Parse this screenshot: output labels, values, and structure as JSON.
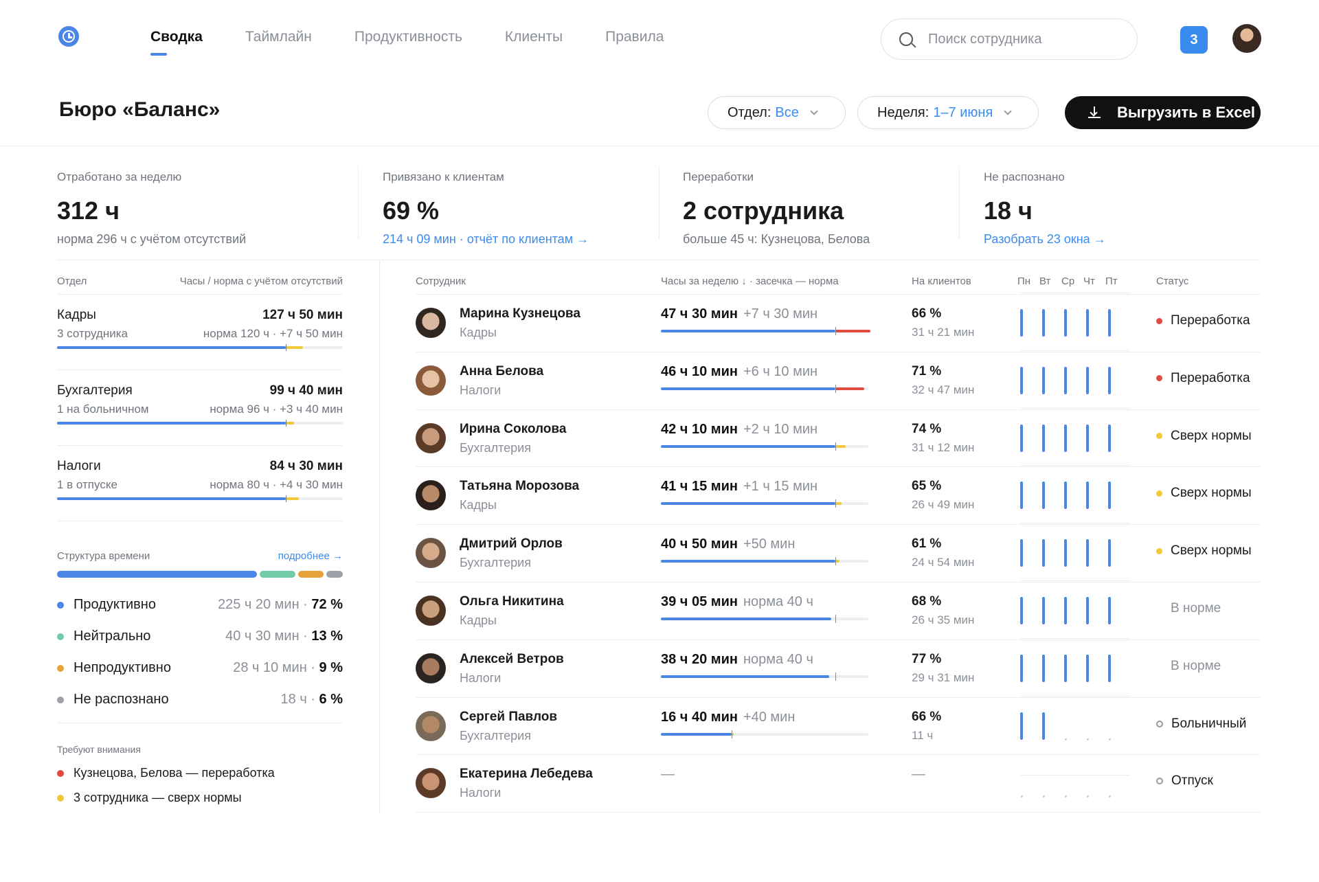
{
  "nav": {
    "tabs": [
      "Сводка",
      "Таймлайн",
      "Продуктивность",
      "Клиенты",
      "Правила"
    ],
    "active": 0
  },
  "search": {
    "placeholder": "Поиск сотрудника"
  },
  "notifications": {
    "count": "3"
  },
  "header": {
    "title": "Бюро «Баланс»",
    "dept_label": "Отдел:",
    "dept_value": "Все",
    "week_label": "Неделя:",
    "week_value": "1–7 июня",
    "export_label": "Выгрузить в Excel"
  },
  "kpis": [
    {
      "label": "Отработано за неделю",
      "value": "312 ч",
      "sub": "норма 296 ч с учётом отсутствий",
      "link": false
    },
    {
      "label": "Привязано к клиентам",
      "value": "69 %",
      "sub": "214 ч 09 мин · отчёт по клиентам →",
      "link": true
    },
    {
      "label": "Переработки",
      "value": "2 сотрудника",
      "sub": "больше 45 ч: Кузнецова, Белова",
      "link": false
    },
    {
      "label": "Не распознано",
      "value": "18 ч",
      "sub": "Разобрать 23 окна →",
      "link": true
    }
  ],
  "departments": {
    "head_left": "Отдел",
    "head_right": "Часы / норма с учётом отсутствий",
    "items": [
      {
        "name": "Кадры",
        "hours": "127 ч 50 мин",
        "note": "3 сотрудника",
        "norm": "норма 120 ч · +7 ч 50 мин",
        "fill": 0.8,
        "over": 0.06
      },
      {
        "name": "Бухгалтерия",
        "hours": "99 ч 40 мин",
        "note": "1 на больничном",
        "norm": "норма 96 ч · +3 ч 40 мин",
        "fill": 0.8,
        "over": 0.03
      },
      {
        "name": "Налоги",
        "hours": "84 ч 30 мин",
        "note": "1 в отпуске",
        "norm": "норма 80 ч · +4 ч 30 мин",
        "fill": 0.8,
        "over": 0.045
      }
    ]
  },
  "structure": {
    "title": "Структура времени",
    "more": "подробнее →",
    "items": [
      {
        "name": "Продуктивно",
        "value": "225 ч 20 мин · ",
        "pct": "72 %",
        "color": "#4a86e8",
        "share": 72
      },
      {
        "name": "Нейтрально",
        "value": "40 ч 30 мин · ",
        "pct": "13 %",
        "color": "#6fcca7",
        "share": 13
      },
      {
        "name": "Непродуктивно",
        "value": "28 ч 10 мин · ",
        "pct": "9 %",
        "color": "#e8a23a",
        "share": 9
      },
      {
        "name": "Не распознано",
        "value": "18 ч · ",
        "pct": "6 %",
        "color": "#9ea2a8",
        "share": 6
      }
    ]
  },
  "attention": {
    "title": "Требуют внимания",
    "items": [
      {
        "text": "Кузнецова, Белова — переработка",
        "color": "#e04b44"
      },
      {
        "text": "3 сотрудника — сверх нормы",
        "color": "#f0c93a"
      }
    ]
  },
  "table": {
    "headers": {
      "employee": "Сотрудник",
      "hours": "Часы за неделю ↓ · засечка — норма",
      "clients": "На клиентов",
      "status": "Статус"
    },
    "days": [
      "Пн",
      "Вт",
      "Ср",
      "Чт",
      "Пт"
    ],
    "rows": [
      {
        "name": "Марина Кузнецова",
        "dept": "Кадры",
        "hours": "47 ч 30 мин",
        "delta": "+7 ч 30 мин",
        "fill": 0.84,
        "over": 0.17,
        "over_color": "#e04b44",
        "pct": "66 %",
        "pct_sub": "31 ч 21 мин",
        "days": [
          1,
          1,
          1,
          1,
          1
        ],
        "status": "Переработка",
        "status_kind": "red"
      },
      {
        "name": "Анна Белова",
        "dept": "Налоги",
        "hours": "46 ч 10 мин",
        "delta": "+6 ч 10 мин",
        "fill": 0.84,
        "over": 0.14,
        "over_color": "#e04b44",
        "pct": "71 %",
        "pct_sub": "32 ч 47 мин",
        "days": [
          1,
          1,
          1,
          1,
          1
        ],
        "status": "Переработка",
        "status_kind": "red"
      },
      {
        "name": "Ирина Соколова",
        "dept": "Бухгалтерия",
        "hours": "42 ч 10 мин",
        "delta": "+2 ч 10 мин",
        "fill": 0.84,
        "over": 0.05,
        "over_color": "#f0c93a",
        "pct": "74 %",
        "pct_sub": "31 ч 12 мин",
        "days": [
          1,
          1,
          1,
          1,
          1
        ],
        "status": "Сверх нормы",
        "status_kind": "yellow"
      },
      {
        "name": "Татьяна Морозова",
        "dept": "Кадры",
        "hours": "41 ч 15 мин",
        "delta": "+1 ч 15 мин",
        "fill": 0.84,
        "over": 0.03,
        "over_color": "#f0c93a",
        "pct": "65 %",
        "pct_sub": "26 ч 49 мин",
        "days": [
          1,
          1,
          1,
          1,
          1
        ],
        "status": "Сверх нормы",
        "status_kind": "yellow"
      },
      {
        "name": "Дмитрий Орлов",
        "dept": "Бухгалтерия",
        "hours": "40 ч 50 мин",
        "delta": "+50 мин",
        "fill": 0.84,
        "over": 0.02,
        "over_color": "#f0c93a",
        "pct": "61 %",
        "pct_sub": "24 ч 54 мин",
        "days": [
          1,
          1,
          1,
          1,
          1
        ],
        "status": "Сверх нормы",
        "status_kind": "yellow"
      },
      {
        "name": "Ольга Никитина",
        "dept": "Кадры",
        "hours": "39 ч 05 мин",
        "delta": "норма 40 ч",
        "fill": 0.82,
        "over": 0,
        "over_color": "",
        "pct": "68 %",
        "pct_sub": "26 ч 35 мин",
        "days": [
          1,
          1,
          1,
          1,
          1
        ],
        "status": "В норме",
        "status_kind": "none"
      },
      {
        "name": "Алексей Ветров",
        "dept": "Налоги",
        "hours": "38 ч 20 мин",
        "delta": "норма 40 ч",
        "fill": 0.81,
        "over": 0,
        "over_color": "",
        "pct": "77 %",
        "pct_sub": "29 ч 31 мин",
        "days": [
          1,
          1,
          1,
          1,
          1
        ],
        "status": "В норме",
        "status_kind": "none"
      },
      {
        "name": "Сергей Павлов",
        "dept": "Бухгалтерия",
        "hours": "16 ч 40 мин",
        "delta": "+40 мин",
        "fill": 0.34,
        "over": 0.01,
        "over_color": "#f0c93a",
        "pct": "66 %",
        "pct_sub": "11 ч",
        "days": [
          1,
          1,
          0,
          0,
          0
        ],
        "status": "Больничный",
        "status_kind": "ring"
      },
      {
        "name": "Екатерина Лебедева",
        "dept": "Налоги",
        "hours": "—",
        "delta": "",
        "fill": 0,
        "over": 0,
        "over_color": "",
        "pct": "—",
        "pct_sub": "",
        "days": [
          0,
          0,
          0,
          0,
          0
        ],
        "status": "Отпуск",
        "status_kind": "ring"
      }
    ]
  },
  "colors": {
    "accent": "#4a86e8",
    "red": "#e04b44",
    "yellow": "#f0c93a",
    "green": "#6fcca7",
    "orange": "#e8a23a",
    "grey": "#9ea2a8"
  }
}
